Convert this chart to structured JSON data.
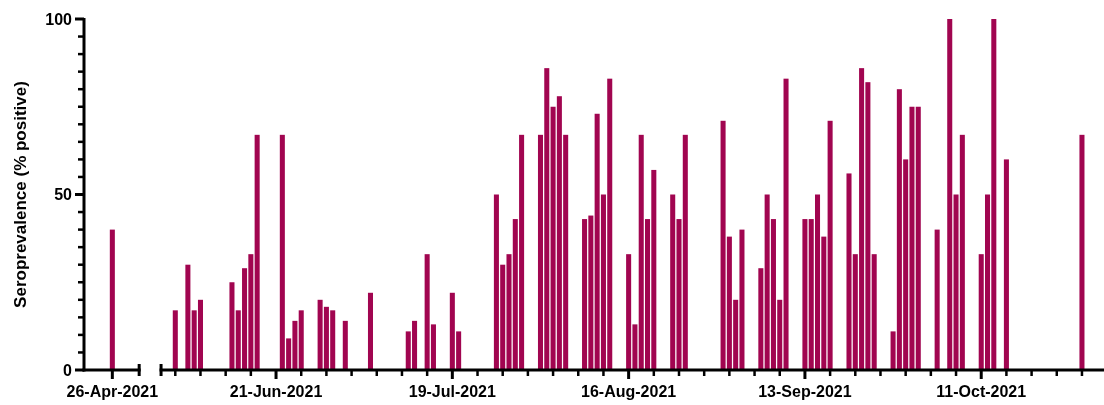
{
  "chart_data": {
    "type": "bar",
    "ylabel": "Seroprevalence (% positive)",
    "color": "#a10550",
    "ylim": [
      0,
      100
    ],
    "yticks": [
      0,
      {
        "value": 5,
        "label": null
      },
      {
        "value": 10,
        "label": null
      },
      {
        "value": 15,
        "label": null
      },
      {
        "value": 20,
        "label": null
      },
      {
        "value": 25,
        "label": null
      },
      {
        "value": 30,
        "label": null
      },
      {
        "value": 35,
        "label": null
      },
      {
        "value": 40,
        "label": null
      },
      {
        "value": 45,
        "label": null
      },
      50,
      {
        "value": 55,
        "label": null
      },
      {
        "value": 60,
        "label": null
      },
      {
        "value": 65,
        "label": null
      },
      {
        "value": 70,
        "label": null
      },
      {
        "value": 75,
        "label": null
      },
      {
        "value": 80,
        "label": null
      },
      {
        "value": 85,
        "label": null
      },
      {
        "value": 90,
        "label": null
      },
      {
        "value": 95,
        "label": null
      },
      100
    ],
    "categories": [
      null,
      null,
      null,
      null,
      "26-Apr-2021",
      null,
      null,
      null,
      null,
      null,
      null,
      null,
      null,
      null,
      null,
      null,
      null,
      null,
      null,
      null,
      null,
      null,
      null,
      null,
      null,
      null,
      null,
      null,
      null,
      null,
      "21-Jun-2021",
      null,
      null,
      null,
      null,
      null,
      null,
      null,
      null,
      null,
      null,
      null,
      null,
      null,
      null,
      null,
      null,
      null,
      null,
      null,
      null,
      null,
      null,
      null,
      null,
      null,
      null,
      null,
      "19-Jul-2021",
      null,
      null,
      null,
      null,
      null,
      null,
      null,
      null,
      null,
      null,
      null,
      null,
      null,
      null,
      null,
      null,
      null,
      null,
      null,
      null,
      null,
      null,
      null,
      null,
      null,
      null,
      null,
      "16-Aug-2021",
      null,
      null,
      null,
      null,
      null,
      null,
      null,
      null,
      null,
      null,
      null,
      null,
      null,
      null,
      null,
      null,
      null,
      null,
      null,
      null,
      null,
      null,
      null,
      null,
      null,
      null,
      null,
      "13-Sep-2021",
      null,
      null,
      null,
      null,
      null,
      null,
      null,
      null,
      null,
      null,
      null,
      null,
      null,
      null,
      null,
      null,
      null,
      null,
      null,
      null,
      null,
      null,
      null,
      null,
      null,
      null,
      null,
      "11-Oct-2021",
      null,
      null,
      null,
      null,
      null,
      null,
      null,
      null,
      null,
      null,
      null,
      null,
      null,
      null,
      null,
      null,
      null,
      null,
      null
    ],
    "values": [
      null,
      null,
      null,
      null,
      40,
      null,
      null,
      null,
      null,
      null,
      null,
      null,
      null,
      null,
      17,
      null,
      30,
      17,
      20,
      null,
      null,
      null,
      null,
      25,
      17,
      29,
      33,
      67,
      null,
      null,
      null,
      67,
      9,
      14,
      17,
      null,
      null,
      20,
      18,
      17,
      null,
      14,
      null,
      null,
      null,
      22,
      null,
      null,
      null,
      null,
      null,
      11,
      14,
      null,
      33,
      13,
      null,
      null,
      22,
      11,
      null,
      null,
      null,
      null,
      null,
      50,
      30,
      33,
      43,
      67,
      null,
      null,
      67,
      86,
      75,
      78,
      67,
      null,
      null,
      43,
      44,
      73,
      50,
      83,
      null,
      null,
      33,
      13,
      67,
      43,
      57,
      null,
      null,
      50,
      43,
      67,
      null,
      null,
      null,
      null,
      null,
      71,
      38,
      20,
      40,
      null,
      null,
      29,
      50,
      43,
      20,
      83,
      null,
      null,
      43,
      43,
      50,
      38,
      71,
      null,
      null,
      56,
      33,
      86,
      82,
      33,
      null,
      null,
      11,
      80,
      60,
      75,
      75,
      null,
      null,
      40,
      null,
      100,
      50,
      67,
      null,
      null,
      33,
      50,
      100,
      null,
      60,
      null,
      null,
      null,
      null,
      null,
      null,
      null,
      null,
      null,
      null,
      null,
      67,
      null,
      null,
      null
    ]
  }
}
